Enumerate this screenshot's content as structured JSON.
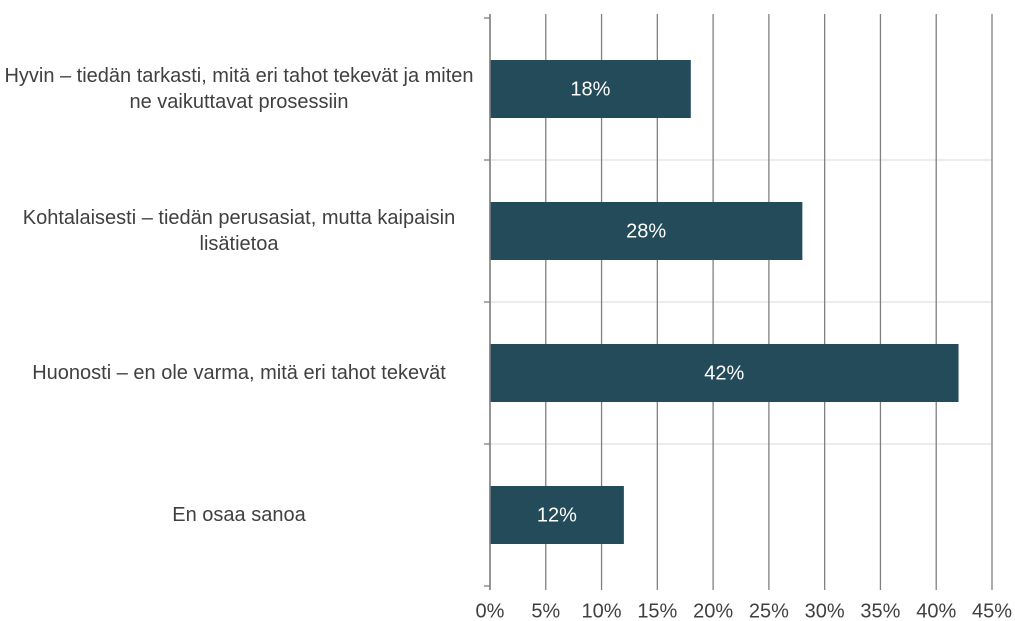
{
  "chart_data": {
    "type": "bar",
    "orientation": "horizontal",
    "categories": [
      "Hyvin – tiedän tarkasti, mitä eri tahot tekevät ja miten ne vaikuttavat prosessiin",
      "Kohtalaisesti – tiedän perusasiat, mutta kaipaisin lisätietoa",
      "Huonosti – en ole varma, mitä eri tahot tekevät",
      "En osaa sanoa"
    ],
    "values": [
      18,
      28,
      42,
      12
    ],
    "value_labels": [
      "18%",
      "28%",
      "42%",
      "12%"
    ],
    "color": "#234b5a",
    "xlim": [
      0,
      45
    ],
    "xticks": [
      {
        "value": 0,
        "label": "0%"
      },
      {
        "value": 5,
        "label": "5%"
      },
      {
        "value": 10,
        "label": "10%"
      },
      {
        "value": 15,
        "label": "15%"
      },
      {
        "value": 20,
        "label": "20%"
      },
      {
        "value": 25,
        "label": "25%"
      },
      {
        "value": 30,
        "label": "30%"
      },
      {
        "value": 35,
        "label": "35%"
      },
      {
        "value": 40,
        "label": "40%"
      },
      {
        "value": 45,
        "label": "45%"
      }
    ],
    "grid": true
  }
}
